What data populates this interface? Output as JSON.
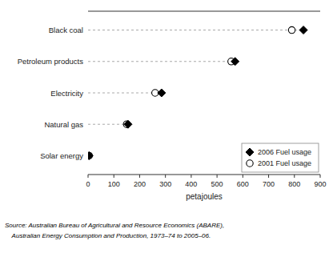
{
  "chart_data": {
    "type": "dot",
    "orientation": "horizontal",
    "categories": [
      "Solar energy",
      "Natural gas",
      "Electricity",
      "Petroleum products",
      "Black coal"
    ],
    "series": [
      {
        "name": "2006 Fuel usage",
        "color": "#000000",
        "marker": "diamond",
        "values": [
          4,
          155,
          285,
          570,
          835
        ]
      },
      {
        "name": "2001 Fuel usage",
        "color": "#000000",
        "marker": "circle",
        "values": [
          4,
          150,
          260,
          555,
          790
        ]
      }
    ],
    "xlabel": "petajoules",
    "xlim": [
      0,
      900
    ],
    "xticks": [
      0,
      100,
      200,
      300,
      400,
      500,
      600,
      700,
      800,
      900
    ],
    "line_style": "dashed",
    "legend": "lower right",
    "grid": false,
    "annotations": [
      "Source: Australian Bureau of Agricultural and Resource Economics (ABARE),",
      "    Australian Energy Consumption and Production, 1973–74 to 2005–06."
    ]
  }
}
